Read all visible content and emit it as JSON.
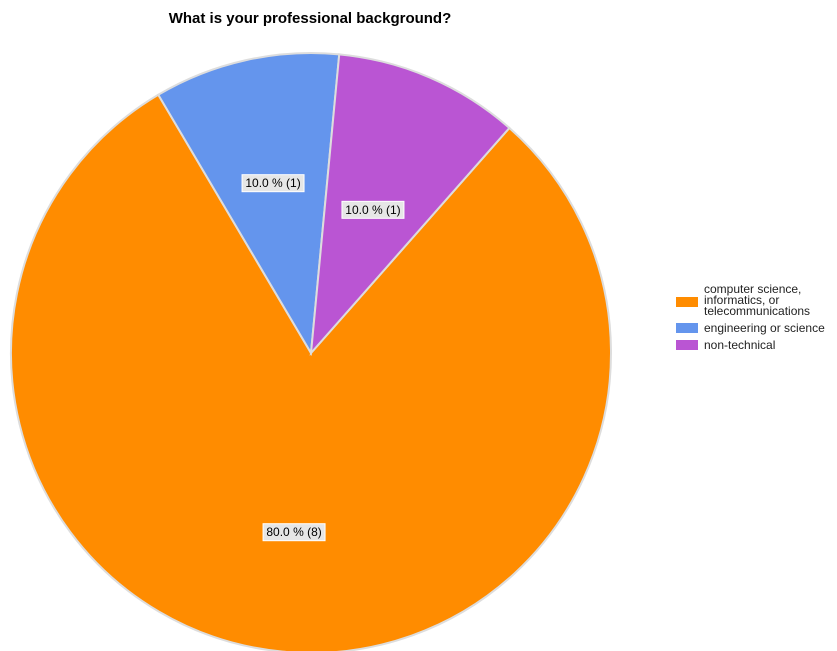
{
  "chart_data": {
    "type": "pie",
    "title": "What is your professional background?",
    "slices": [
      {
        "name": "computer science, informatics, or telecommunications",
        "legend_lines": [
          "computer science,",
          "informatics, or",
          "telecommunications"
        ],
        "value": 8,
        "percent": 80.0,
        "label": "80.0 % (8)",
        "color": "#ff8c00"
      },
      {
        "name": "engineering or science",
        "legend_lines": [
          "engineering or science"
        ],
        "value": 1,
        "percent": 10.0,
        "label": "10.0 % (1)",
        "color": "#6495ed"
      },
      {
        "name": "non-technical",
        "legend_lines": [
          "non-technical"
        ],
        "value": 1,
        "percent": 10.0,
        "label": "10.0 % (1)",
        "color": "#ba55d3"
      }
    ],
    "legend_position": "right"
  }
}
